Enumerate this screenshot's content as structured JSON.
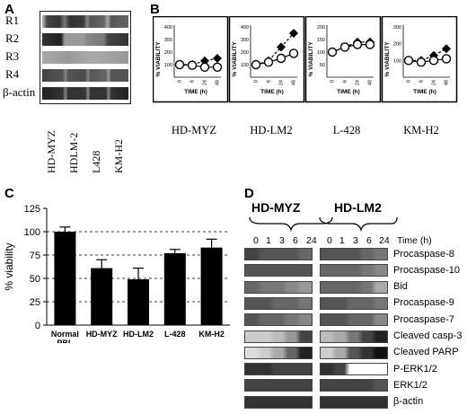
{
  "panels": {
    "a": "A",
    "b": "B",
    "c": "C",
    "d": "D"
  },
  "panel_a": {
    "row_labels": [
      "R1",
      "R2",
      "R3",
      "R4",
      "β-actin"
    ],
    "lane_labels": [
      "HD-MYZ",
      "HDLM-2",
      "L428",
      "KM-H2"
    ]
  },
  "panel_b": {
    "cell_labels": [
      "HD-MYZ",
      "HD-LM2",
      "L-428",
      "KM-H2"
    ],
    "ylabel": "% VIABILITY",
    "xlabel": "TIME (h)"
  },
  "panel_d": {
    "group_labels": [
      "HD-MYZ",
      "HD-LM2"
    ],
    "time_values": [
      "0",
      "1",
      "3",
      "6",
      "24"
    ],
    "time_unit": "Time (h)",
    "row_labels": [
      "Procaspase-8",
      "Procaspase-10",
      "Bid",
      "Procaspase-9",
      "Procaspase-7",
      "Cleaved casp-3",
      "Cleaved PARP",
      "P-ERK1/2",
      "ERK1/2",
      "β-actin"
    ]
  },
  "chart_data": [
    {
      "type": "line",
      "panel": "B",
      "subplots": [
        {
          "name": "HD-MYZ",
          "x": [
            0,
            6,
            24,
            48
          ],
          "ylim": [
            0,
            400
          ],
          "yticks": [
            100,
            200,
            300,
            400
          ],
          "xticks": [
            "0",
            "6",
            "24",
            "48"
          ],
          "series": [
            {
              "marker": "filled-diamond",
              "values": [
                100,
                100,
                130,
                150
              ]
            },
            {
              "marker": "open-circle",
              "values": [
                100,
                95,
                80,
                80
              ]
            }
          ]
        },
        {
          "name": "HD-LM2",
          "x": [
            0,
            6,
            24,
            48
          ],
          "ylim": [
            0,
            400
          ],
          "yticks": [
            100,
            200,
            300,
            400
          ],
          "xticks": [
            "0",
            "6",
            "24",
            "48"
          ],
          "series": [
            {
              "marker": "filled-diamond",
              "values": [
                100,
                130,
                240,
                350
              ]
            },
            {
              "marker": "open-circle",
              "values": [
                100,
                120,
                150,
                190
              ]
            }
          ]
        },
        {
          "name": "L-428",
          "x": [
            0,
            6,
            24,
            48
          ],
          "ylim": [
            0,
            200
          ],
          "yticks": [
            50,
            100,
            150,
            200
          ],
          "xticks": [
            "0",
            "6",
            "24",
            "48"
          ],
          "series": [
            {
              "marker": "filled-diamond",
              "values": [
                100,
                120,
                140,
                140
              ]
            },
            {
              "marker": "open-circle",
              "values": [
                100,
                120,
                130,
                130
              ]
            }
          ]
        },
        {
          "name": "KM-H2",
          "x": [
            0,
            6,
            24,
            48
          ],
          "ylim": [
            0,
            300
          ],
          "yticks": [
            100,
            200,
            300
          ],
          "xticks": [
            "0",
            "6",
            "24",
            "48"
          ],
          "series": [
            {
              "marker": "filled-diamond",
              "values": [
                100,
                100,
                130,
                170
              ]
            },
            {
              "marker": "open-circle",
              "values": [
                100,
                90,
                100,
                110
              ]
            }
          ]
        }
      ]
    },
    {
      "type": "bar",
      "panel": "C",
      "categories": [
        "Normal PBL",
        "HD-MYZ",
        "HD-LM2",
        "L-428",
        "KM-H2"
      ],
      "values": [
        100,
        61,
        49,
        77,
        83
      ],
      "errors": [
        5,
        9,
        12,
        4,
        9
      ],
      "ylabel": "% viability",
      "ylim": [
        0,
        125
      ],
      "yticks": [
        0,
        25,
        50,
        75,
        100,
        125
      ],
      "gridlines": [
        25,
        50,
        75,
        100
      ],
      "grid": "dashed"
    }
  ]
}
